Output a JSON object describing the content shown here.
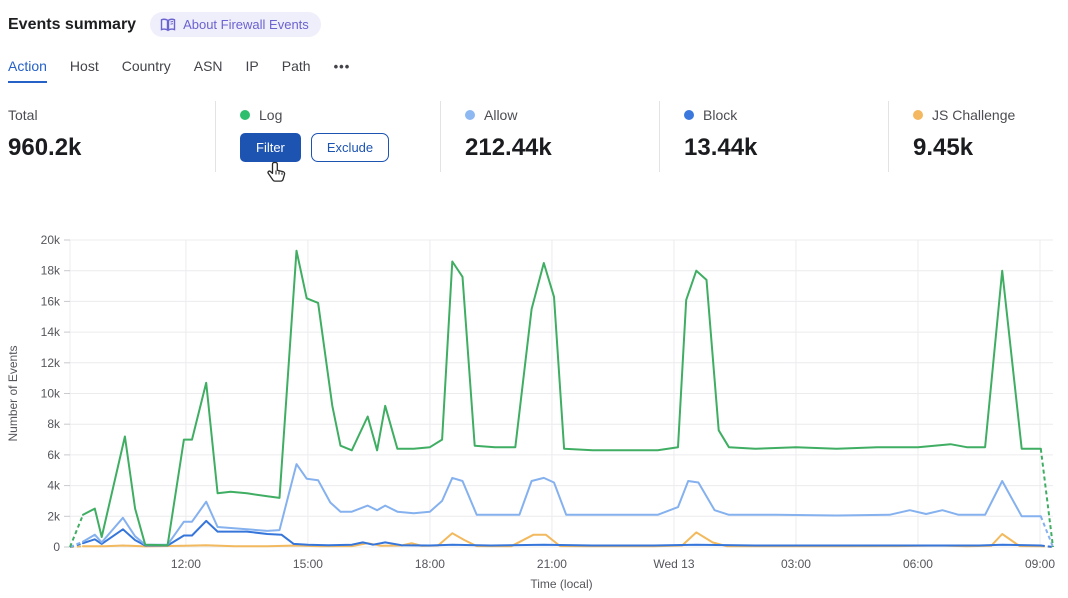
{
  "header": {
    "title": "Events summary",
    "about_badge_label": "About Firewall Events"
  },
  "icons": {
    "about_badge": "book-icon",
    "tabs_overflow": "ellipsis-icon",
    "mouse": "pointer-hand-cursor-icon"
  },
  "tabs": {
    "items": [
      "Action",
      "Host",
      "Country",
      "ASN",
      "IP",
      "Path"
    ],
    "active": "Action",
    "more_label": "•••"
  },
  "colors": {
    "accent_blue": "#1d54b2",
    "active_tab_blue": "#2661c7",
    "log_green": "#3fae63",
    "allow_light_blue": "#85b1ef",
    "block_blue": "#3676db",
    "js_challenge_orange": "#f2b95e",
    "badge_purple": "#6b63cf"
  },
  "cards": [
    {
      "label": "Total",
      "value": "960.2k"
    },
    {
      "label": "Log",
      "dot_color": "#2fbe6d",
      "buttons": [
        {
          "label": "Filter"
        },
        {
          "label": "Exclude"
        }
      ]
    },
    {
      "label": "Allow",
      "value": "212.44k",
      "dot_color": "#8db8f2"
    },
    {
      "label": "Block",
      "value": "13.44k",
      "dot_color": "#3a78dd"
    },
    {
      "label": "JS Challenge",
      "value": "9.45k",
      "dot_color": "#f3b860"
    }
  ],
  "chart_data": {
    "type": "line",
    "xlabel": "Time (local)",
    "ylabel": "Number of Events",
    "grid": true,
    "legend_position": "none (stat cards above act as legend)",
    "y_unit": "thousands of events",
    "y_max_k": 20,
    "y_tick_step_k": 2,
    "x_domain_hours": [
      0.15,
      24.32
    ],
    "x_ticks": [
      {
        "t": 3,
        "label": "12:00"
      },
      {
        "t": 6,
        "label": "15:00"
      },
      {
        "t": 9,
        "label": "18:00"
      },
      {
        "t": 12,
        "label": "21:00"
      },
      {
        "t": 15,
        "label": "Wed 13"
      },
      {
        "t": 18,
        "label": "03:00"
      },
      {
        "t": 21,
        "label": "06:00"
      },
      {
        "t": 24,
        "label": "09:00"
      }
    ],
    "note": "t = hours since Tue 09:00; values in thousands (k); dashed edge segments depict partial first/last buckets",
    "series": [
      {
        "name": "JS Challenge",
        "color": "#f2b95e",
        "points": [
          [
            0.47,
            0.05
          ],
          [
            1.0,
            0.05
          ],
          [
            1.45,
            0.1
          ],
          [
            2.0,
            0.04
          ],
          [
            2.95,
            0.08
          ],
          [
            3.5,
            0.12
          ],
          [
            4.2,
            0.05
          ],
          [
            5.0,
            0.05
          ],
          [
            5.72,
            0.1
          ],
          [
            6.3,
            0.05
          ],
          [
            7.08,
            0.06
          ],
          [
            7.47,
            0.25
          ],
          [
            7.8,
            0.08
          ],
          [
            8.3,
            0.1
          ],
          [
            8.55,
            0.25
          ],
          [
            8.8,
            0.07
          ],
          [
            9.2,
            0.1
          ],
          [
            9.55,
            0.9
          ],
          [
            9.85,
            0.45
          ],
          [
            10.15,
            0.06
          ],
          [
            11.0,
            0.05
          ],
          [
            11.55,
            0.8
          ],
          [
            11.85,
            0.8
          ],
          [
            12.2,
            0.06
          ],
          [
            13.0,
            0.05
          ],
          [
            14.5,
            0.05
          ],
          [
            15.2,
            0.1
          ],
          [
            15.55,
            0.95
          ],
          [
            15.95,
            0.3
          ],
          [
            16.3,
            0.05
          ],
          [
            17.5,
            0.05
          ],
          [
            19.0,
            0.05
          ],
          [
            20.5,
            0.06
          ],
          [
            21.5,
            0.1
          ],
          [
            22.2,
            0.05
          ],
          [
            22.8,
            0.08
          ],
          [
            23.07,
            0.85
          ],
          [
            23.5,
            0.06
          ],
          [
            24.02,
            0.05
          ]
        ]
      },
      {
        "name": "Block",
        "color": "#3676db",
        "points": [
          [
            0.47,
            0.25
          ],
          [
            0.76,
            0.5
          ],
          [
            0.93,
            0.2
          ],
          [
            1.45,
            1.15
          ],
          [
            1.75,
            0.45
          ],
          [
            2.0,
            0.1
          ],
          [
            2.55,
            0.1
          ],
          [
            2.95,
            0.75
          ],
          [
            3.15,
            0.75
          ],
          [
            3.5,
            1.7
          ],
          [
            3.78,
            1.0
          ],
          [
            4.5,
            1.0
          ],
          [
            5.0,
            0.85
          ],
          [
            5.35,
            0.8
          ],
          [
            5.65,
            0.2
          ],
          [
            6.0,
            0.15
          ],
          [
            6.5,
            0.12
          ],
          [
            7.08,
            0.15
          ],
          [
            7.35,
            0.3
          ],
          [
            7.6,
            0.15
          ],
          [
            7.9,
            0.3
          ],
          [
            8.3,
            0.12
          ],
          [
            9.0,
            0.1
          ],
          [
            9.55,
            0.15
          ],
          [
            10.5,
            0.1
          ],
          [
            11.8,
            0.15
          ],
          [
            13.0,
            0.1
          ],
          [
            14.5,
            0.1
          ],
          [
            15.55,
            0.15
          ],
          [
            17.0,
            0.1
          ],
          [
            19.0,
            0.1
          ],
          [
            21.0,
            0.1
          ],
          [
            22.5,
            0.1
          ],
          [
            23.07,
            0.15
          ],
          [
            24.02,
            0.1
          ]
        ]
      },
      {
        "name": "Allow",
        "color": "#85b1ef",
        "points": [
          [
            0.47,
            0.35
          ],
          [
            0.76,
            0.8
          ],
          [
            0.93,
            0.3
          ],
          [
            1.45,
            1.9
          ],
          [
            1.75,
            0.7
          ],
          [
            2.0,
            0.15
          ],
          [
            2.55,
            0.15
          ],
          [
            2.95,
            1.65
          ],
          [
            3.15,
            1.65
          ],
          [
            3.5,
            2.95
          ],
          [
            3.78,
            1.3
          ],
          [
            4.3,
            1.2
          ],
          [
            5.0,
            1.05
          ],
          [
            5.3,
            1.1
          ],
          [
            5.72,
            5.4
          ],
          [
            5.97,
            4.45
          ],
          [
            6.25,
            4.35
          ],
          [
            6.55,
            2.9
          ],
          [
            6.8,
            2.3
          ],
          [
            7.08,
            2.3
          ],
          [
            7.47,
            2.7
          ],
          [
            7.7,
            2.4
          ],
          [
            7.9,
            2.7
          ],
          [
            8.2,
            2.3
          ],
          [
            8.6,
            2.2
          ],
          [
            9.0,
            2.3
          ],
          [
            9.3,
            3.0
          ],
          [
            9.55,
            4.5
          ],
          [
            9.8,
            4.3
          ],
          [
            10.15,
            2.1
          ],
          [
            11.2,
            2.1
          ],
          [
            11.5,
            4.3
          ],
          [
            11.8,
            4.5
          ],
          [
            12.05,
            4.2
          ],
          [
            12.35,
            2.1
          ],
          [
            13.0,
            2.1
          ],
          [
            14.6,
            2.1
          ],
          [
            15.1,
            2.6
          ],
          [
            15.35,
            4.3
          ],
          [
            15.6,
            4.2
          ],
          [
            16.0,
            2.4
          ],
          [
            16.35,
            2.1
          ],
          [
            17.5,
            2.1
          ],
          [
            19.0,
            2.05
          ],
          [
            20.3,
            2.1
          ],
          [
            20.8,
            2.4
          ],
          [
            21.2,
            2.15
          ],
          [
            21.6,
            2.4
          ],
          [
            22.0,
            2.1
          ],
          [
            22.65,
            2.1
          ],
          [
            23.07,
            4.3
          ],
          [
            23.55,
            2.0
          ],
          [
            24.02,
            2.0
          ]
        ]
      },
      {
        "name": "Log",
        "color": "#3fae63",
        "points": [
          [
            0.47,
            2.1
          ],
          [
            0.76,
            2.5
          ],
          [
            0.93,
            0.65
          ],
          [
            1.5,
            7.2
          ],
          [
            1.75,
            2.5
          ],
          [
            2.0,
            0.15
          ],
          [
            2.55,
            0.12
          ],
          [
            2.95,
            7.0
          ],
          [
            3.15,
            7.0
          ],
          [
            3.5,
            10.7
          ],
          [
            3.78,
            3.5
          ],
          [
            4.1,
            3.6
          ],
          [
            4.5,
            3.5
          ],
          [
            5.0,
            3.3
          ],
          [
            5.3,
            3.2
          ],
          [
            5.72,
            19.3
          ],
          [
            5.97,
            16.2
          ],
          [
            6.25,
            15.9
          ],
          [
            6.6,
            9.2
          ],
          [
            6.8,
            6.6
          ],
          [
            7.08,
            6.3
          ],
          [
            7.47,
            8.5
          ],
          [
            7.7,
            6.3
          ],
          [
            7.9,
            9.2
          ],
          [
            8.2,
            6.4
          ],
          [
            8.6,
            6.4
          ],
          [
            9.0,
            6.5
          ],
          [
            9.3,
            7.0
          ],
          [
            9.55,
            18.6
          ],
          [
            9.8,
            17.6
          ],
          [
            10.1,
            6.6
          ],
          [
            10.6,
            6.5
          ],
          [
            11.1,
            6.5
          ],
          [
            11.5,
            15.5
          ],
          [
            11.8,
            18.5
          ],
          [
            12.05,
            16.3
          ],
          [
            12.3,
            6.4
          ],
          [
            13.0,
            6.3
          ],
          [
            14.0,
            6.3
          ],
          [
            14.6,
            6.3
          ],
          [
            15.1,
            6.5
          ],
          [
            15.3,
            16.1
          ],
          [
            15.55,
            18.0
          ],
          [
            15.8,
            17.4
          ],
          [
            16.1,
            7.6
          ],
          [
            16.35,
            6.5
          ],
          [
            17.0,
            6.4
          ],
          [
            18.0,
            6.5
          ],
          [
            19.0,
            6.4
          ],
          [
            20.0,
            6.5
          ],
          [
            21.0,
            6.5
          ],
          [
            21.8,
            6.7
          ],
          [
            22.2,
            6.5
          ],
          [
            22.65,
            6.5
          ],
          [
            23.07,
            18.0
          ],
          [
            23.55,
            6.4
          ],
          [
            24.02,
            6.4
          ]
        ]
      }
    ]
  }
}
